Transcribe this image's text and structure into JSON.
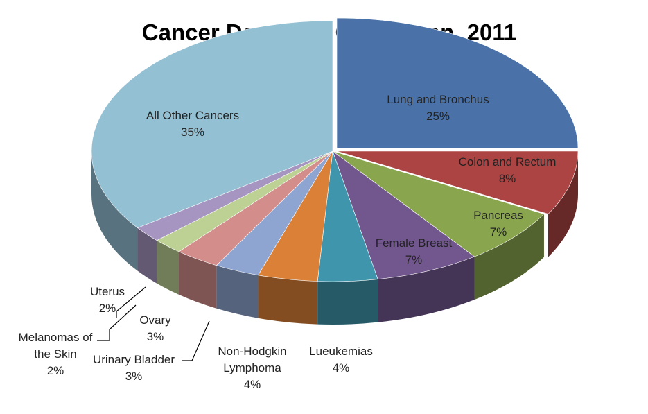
{
  "chart_data": {
    "type": "pie",
    "title": "Cancer Deaths in CT Women, 2011",
    "slices": [
      {
        "label": "Lung and Bronchus",
        "value": 25,
        "display": "25%",
        "color": "#4a72a8"
      },
      {
        "label": "Colon and Rectum",
        "value": 8,
        "display": "8%",
        "color": "#ab4443"
      },
      {
        "label": "Pancreas",
        "value": 7,
        "display": "7%",
        "color": "#89a54e"
      },
      {
        "label": "Female Breast",
        "value": 7,
        "display": "7%",
        "color": "#72578e"
      },
      {
        "label": "Lueukemias",
        "value": 4,
        "display": "4%",
        "color": "#3f96ac"
      },
      {
        "label": "Non-Hodgkin Lymphoma",
        "value": 4,
        "display": "4%",
        "color": "#da8137"
      },
      {
        "label": "Urinary Bladder",
        "value": 3,
        "display": "3%",
        "color": "#8fa5d1"
      },
      {
        "label": "Ovary",
        "value": 3,
        "display": "3%",
        "color": "#d38e8c"
      },
      {
        "label": "Melanomas of the Skin",
        "value": 2,
        "display": "2%",
        "color": "#bdd194"
      },
      {
        "label": "Uterus",
        "value": 2,
        "display": "2%",
        "color": "#a595c0"
      },
      {
        "label": "All Other Cancers",
        "value": 35,
        "display": "35%",
        "color": "#93c0d3"
      }
    ],
    "legend": "none",
    "style": "3d-exploded-tilted"
  }
}
